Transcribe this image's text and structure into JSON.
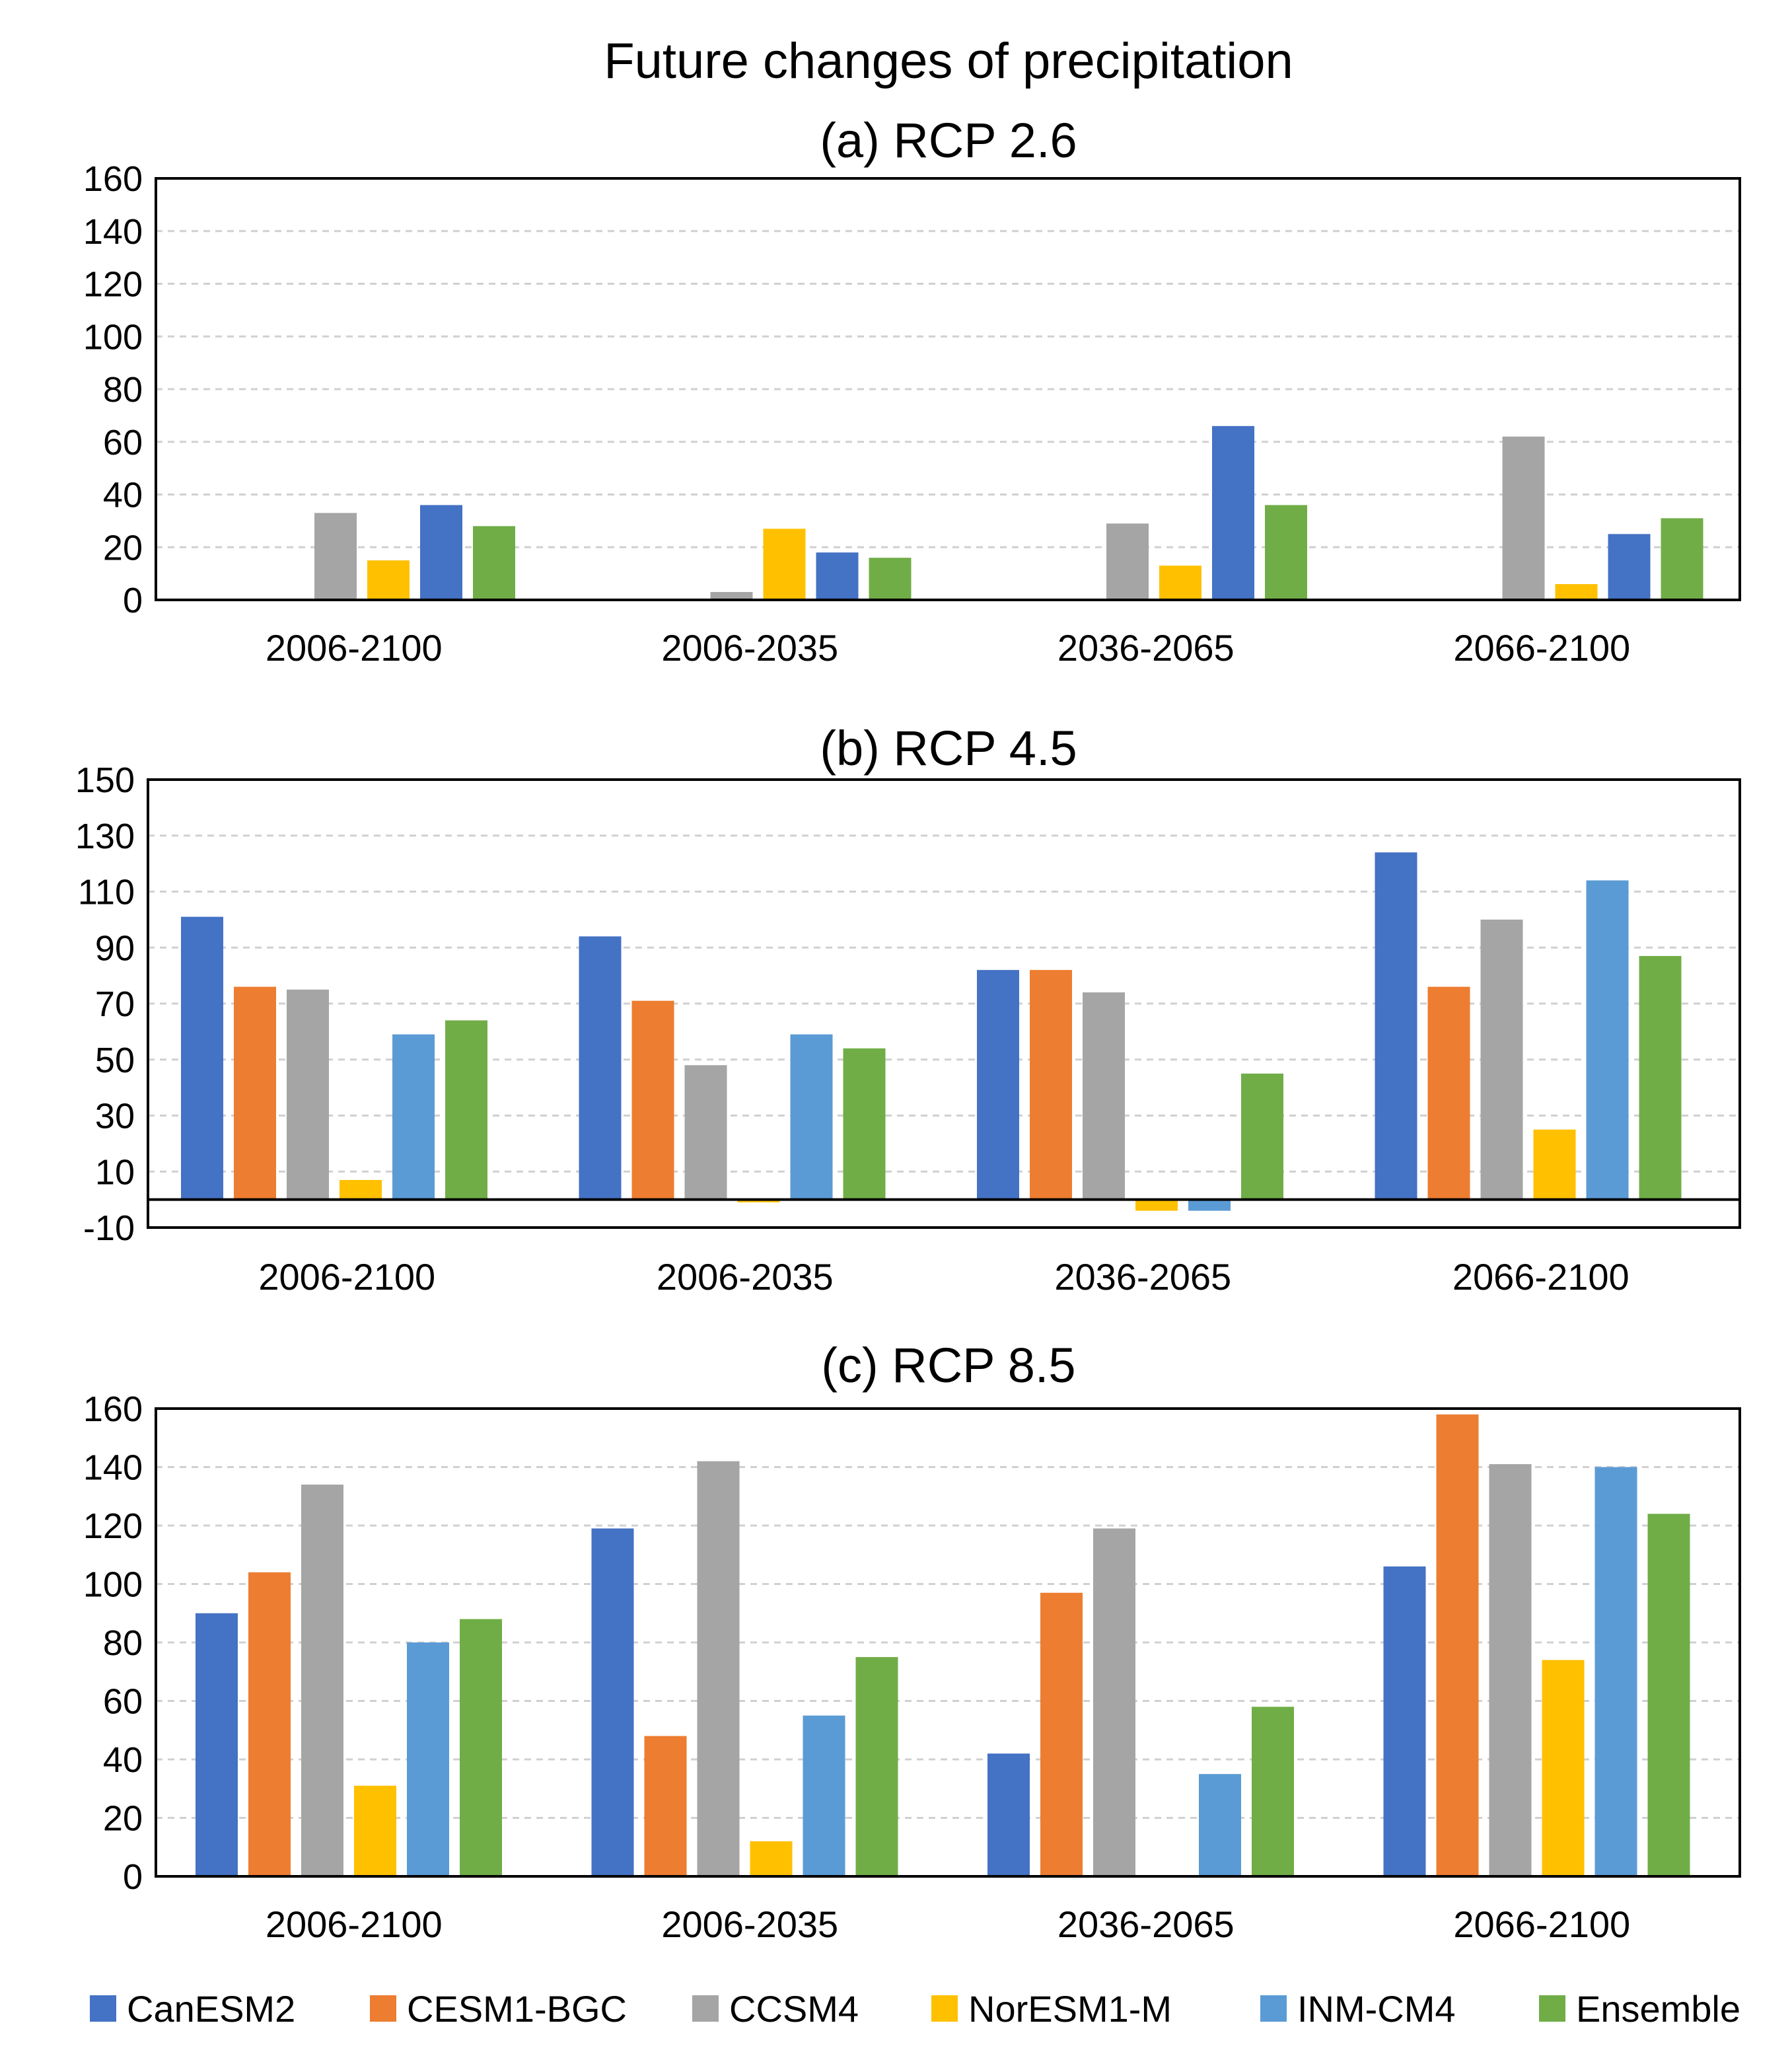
{
  "figure_title": "Future changes of precipitation",
  "legend": [
    {
      "name": "CanESM2",
      "color": "#4472C4"
    },
    {
      "name": "CESM1-BGC",
      "color": "#ED7D31"
    },
    {
      "name": "CCSM4",
      "color": "#A5A5A5"
    },
    {
      "name": "NorESM1-M",
      "color": "#FFC000"
    },
    {
      "name": "INM-CM4",
      "color": "#5B9BD5"
    },
    {
      "name": "Ensemble",
      "color": "#70AD47"
    }
  ],
  "chart_data": [
    {
      "type": "bar",
      "title": "(a) RCP 2.6",
      "categories": [
        "2006-2100",
        "2006-2035",
        "2036-2065",
        "2066-2100"
      ],
      "ylim": [
        0,
        160
      ],
      "yticks": [
        0,
        20,
        40,
        60,
        80,
        100,
        120,
        140,
        160
      ],
      "ytick_labels": [
        "0",
        "20",
        "40",
        "60",
        "80",
        "100",
        "120",
        "140",
        "160"
      ],
      "grid": true,
      "series": [
        {
          "name": "CanESM2",
          "values": [
            0,
            0,
            0,
            0
          ]
        },
        {
          "name": "CESM1-BGC",
          "values": [
            0,
            0,
            0,
            0
          ]
        },
        {
          "name": "CCSM4",
          "values": [
            33,
            3,
            29,
            62
          ]
        },
        {
          "name": "NorESM1-M",
          "values": [
            15,
            27,
            13,
            6
          ]
        },
        {
          "name": "INM-CM4",
          "values": [
            36,
            18,
            66,
            25
          ]
        },
        {
          "name": "Ensemble",
          "values": [
            28,
            16,
            36,
            31
          ]
        }
      ],
      "bar_colors": [
        "#4472C4",
        "#ED7D31",
        "#A5A5A5",
        "#FFC000",
        "#4472C4",
        "#70AD47"
      ]
    },
    {
      "type": "bar",
      "title": "(b) RCP 4.5",
      "categories": [
        "2006-2100",
        "2006-2035",
        "2036-2065",
        "2066-2100"
      ],
      "ylim": [
        -10,
        150
      ],
      "yticks": [
        -10,
        10,
        30,
        50,
        70,
        90,
        110,
        130,
        150
      ],
      "ytick_labels": [
        "-10",
        "10",
        "30",
        "50",
        "70",
        "90",
        "110",
        "130",
        "150"
      ],
      "grid": true,
      "series": [
        {
          "name": "CanESM2",
          "values": [
            101,
            94,
            82,
            124
          ]
        },
        {
          "name": "CESM1-BGC",
          "values": [
            76,
            71,
            82,
            76
          ]
        },
        {
          "name": "CCSM4",
          "values": [
            75,
            48,
            74,
            100
          ]
        },
        {
          "name": "NorESM1-M",
          "values": [
            7,
            -1,
            -4,
            25
          ]
        },
        {
          "name": "INM-CM4",
          "values": [
            59,
            59,
            -4,
            114
          ]
        },
        {
          "name": "Ensemble",
          "values": [
            64,
            54,
            45,
            87
          ]
        }
      ]
    },
    {
      "type": "bar",
      "title": "(c) RCP 8.5",
      "categories": [
        "2006-2100",
        "2006-2035",
        "2036-2065",
        "2066-2100"
      ],
      "ylim": [
        0,
        160
      ],
      "yticks": [
        0,
        20,
        40,
        60,
        80,
        100,
        120,
        140,
        160
      ],
      "ytick_labels": [
        "0",
        "20",
        "40",
        "60",
        "80",
        "100",
        "120",
        "140",
        "160"
      ],
      "grid": true,
      "series": [
        {
          "name": "CanESM2",
          "values": [
            90,
            119,
            42,
            106
          ]
        },
        {
          "name": "CESM1-BGC",
          "values": [
            104,
            48,
            97,
            158
          ]
        },
        {
          "name": "CCSM4",
          "values": [
            134,
            142,
            119,
            141
          ]
        },
        {
          "name": "NorESM1-M",
          "values": [
            31,
            12,
            0,
            74
          ]
        },
        {
          "name": "INM-CM4",
          "values": [
            80,
            55,
            35,
            140
          ]
        },
        {
          "name": "Ensemble",
          "values": [
            88,
            75,
            58,
            124
          ]
        }
      ]
    }
  ]
}
